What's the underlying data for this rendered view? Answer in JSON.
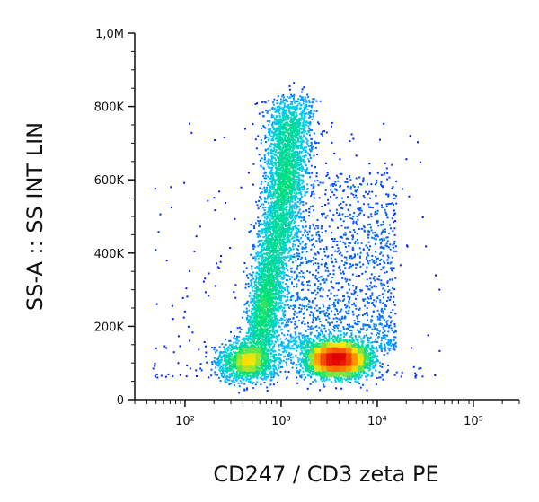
{
  "chart_data": {
    "type": "scatter",
    "subtype": "flow-cytometry-density-dot-plot",
    "xlabel": "CD247 / CD3 zeta PE",
    "ylabel": "SS-A :: SS INT LIN",
    "x_scale": "log",
    "y_scale": "linear",
    "xlim": [
      30,
      300000
    ],
    "ylim": [
      0,
      1000000
    ],
    "x_ticks": [
      {
        "value": 100,
        "label": "10²"
      },
      {
        "value": 1000,
        "label": "10³"
      },
      {
        "value": 10000,
        "label": "10⁴"
      },
      {
        "value": 100000,
        "label": "10⁵"
      }
    ],
    "y_ticks": [
      {
        "value": 0,
        "label": "0"
      },
      {
        "value": 200000,
        "label": "200K"
      },
      {
        "value": 400000,
        "label": "400K"
      },
      {
        "value": 600000,
        "label": "600K"
      },
      {
        "value": 800000,
        "label": "800K"
      },
      {
        "value": 1000000,
        "label": "1,0M"
      }
    ],
    "populations": [
      {
        "description": "elongated high side-scatter population",
        "x_center": 850,
        "y_center": 400000,
        "y_range": [
          150000,
          820000
        ]
      },
      {
        "description": "CD3 zeta positive low side-scatter population",
        "x_center": 4000,
        "y_center": 110000,
        "y_range": [
          60000,
          200000
        ]
      },
      {
        "description": "CD3 zeta negative low side-scatter population",
        "x_center": 500,
        "y_center": 100000,
        "y_range": [
          60000,
          200000
        ]
      }
    ],
    "color_scale": [
      "#0000ff",
      "#00c8ff",
      "#00e07a",
      "#ffe600",
      "#ff6600",
      "#e00000"
    ],
    "grid": false,
    "legend": "none"
  }
}
